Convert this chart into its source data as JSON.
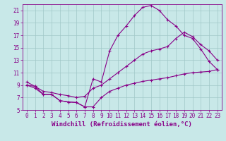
{
  "xlabel": "Windchill (Refroidissement éolien,°C)",
  "ylabel": "",
  "bg_color": "#c8e8e8",
  "line_color": "#880088",
  "grid_color": "#a0c8c8",
  "xlim": [
    -0.5,
    23.5
  ],
  "ylim": [
    5,
    22
  ],
  "xticks": [
    0,
    1,
    2,
    3,
    4,
    5,
    6,
    7,
    8,
    9,
    10,
    11,
    12,
    13,
    14,
    15,
    16,
    17,
    18,
    19,
    20,
    21,
    22,
    23
  ],
  "yticks": [
    5,
    7,
    9,
    11,
    13,
    15,
    17,
    19,
    21
  ],
  "line1_x": [
    0,
    1,
    2,
    3,
    4,
    5,
    6,
    7,
    8,
    9,
    10,
    11,
    12,
    13,
    14,
    15,
    16,
    17,
    18,
    19,
    20,
    21,
    22,
    23
  ],
  "line1_y": [
    9.5,
    8.8,
    7.5,
    7.5,
    6.5,
    6.3,
    6.2,
    5.5,
    10.0,
    9.5,
    14.5,
    17.0,
    18.5,
    20.2,
    21.5,
    21.8,
    21.0,
    19.5,
    18.5,
    17.0,
    16.5,
    14.8,
    12.8,
    11.5
  ],
  "line2_x": [
    0,
    1,
    2,
    3,
    4,
    5,
    6,
    7,
    8,
    9,
    10,
    11,
    12,
    13,
    14,
    15,
    16,
    17,
    18,
    19,
    20,
    21,
    22,
    23
  ],
  "line2_y": [
    9.0,
    8.8,
    8.0,
    7.8,
    7.5,
    7.3,
    7.0,
    7.2,
    8.5,
    9.0,
    10.0,
    11.0,
    12.0,
    13.0,
    14.0,
    14.5,
    14.8,
    15.2,
    16.5,
    17.5,
    16.8,
    15.5,
    14.5,
    13.0
  ],
  "line3_x": [
    0,
    1,
    2,
    3,
    4,
    5,
    6,
    7,
    8,
    9,
    10,
    11,
    12,
    13,
    14,
    15,
    16,
    17,
    18,
    19,
    20,
    21,
    22,
    23
  ],
  "line3_y": [
    9.0,
    8.5,
    7.5,
    7.5,
    6.5,
    6.3,
    6.2,
    5.5,
    5.5,
    7.0,
    8.0,
    8.5,
    9.0,
    9.3,
    9.6,
    9.8,
    10.0,
    10.2,
    10.5,
    10.8,
    11.0,
    11.1,
    11.2,
    11.5
  ],
  "tick_fontsize": 5.5,
  "label_fontsize": 6.5
}
